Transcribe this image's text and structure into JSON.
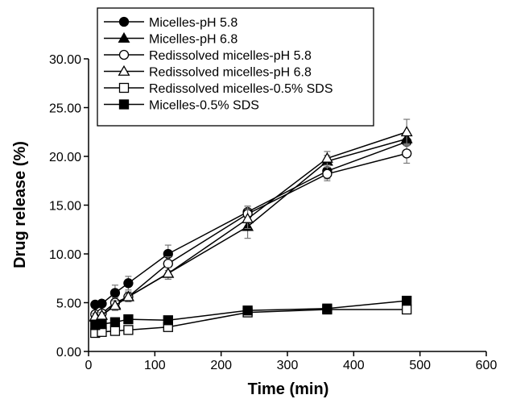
{
  "chart_data": {
    "type": "line",
    "title": "",
    "xlabel": "Time (min)",
    "ylabel": "Drug release (%)",
    "xlim": [
      0,
      600
    ],
    "ylim": [
      0,
      30
    ],
    "x_ticks": [
      "0",
      "100",
      "200",
      "300",
      "400",
      "500",
      "600"
    ],
    "y_ticks": [
      "0.00",
      "5.00",
      "10.00",
      "15.00",
      "20.00",
      "25.00",
      "30.00"
    ],
    "grid": false,
    "legend_position": "top-left",
    "x": [
      10,
      20,
      40,
      60,
      120,
      240,
      360,
      480
    ],
    "series": [
      {
        "name": "Micelles-pH 5.8",
        "marker": "circle",
        "fill": "filled",
        "values": [
          4.8,
          4.9,
          6.0,
          7.0,
          10.0,
          14.3,
          18.5,
          21.5
        ],
        "errors": [
          0.3,
          0.3,
          0.8,
          0.7,
          0.9,
          0.6,
          0.8,
          1.0
        ]
      },
      {
        "name": "Micelles-pH 6.8",
        "marker": "triangle",
        "fill": "filled",
        "values": [
          3.5,
          3.7,
          4.8,
          5.6,
          8.0,
          12.8,
          19.5,
          21.8
        ],
        "errors": [
          0.3,
          0.3,
          0.5,
          0.5,
          0.6,
          1.2,
          0.6,
          0.7
        ]
      },
      {
        "name": "Redissolved micelles-pH 5.8",
        "marker": "circle",
        "fill": "open",
        "values": [
          3.8,
          3.9,
          5.0,
          5.6,
          9.0,
          14.1,
          18.2,
          20.3
        ],
        "errors": [
          0.3,
          0.3,
          0.5,
          0.5,
          0.7,
          0.8,
          0.7,
          1.0
        ]
      },
      {
        "name": "Redissolved micelles-pH 6.8",
        "marker": "triangle",
        "fill": "open",
        "values": [
          3.6,
          3.7,
          4.7,
          5.6,
          8.0,
          13.6,
          19.8,
          22.5
        ],
        "errors": [
          0.3,
          0.3,
          0.5,
          0.5,
          0.6,
          1.0,
          0.7,
          1.3
        ]
      },
      {
        "name": "Redissolved micelles-0.5% SDS",
        "marker": "square",
        "fill": "open",
        "values": [
          1.9,
          2.0,
          2.1,
          2.2,
          2.5,
          4.0,
          4.3,
          4.3
        ],
        "errors": [
          0.2,
          0.2,
          0.2,
          0.2,
          0.2,
          0.2,
          0.2,
          0.2
        ]
      },
      {
        "name": "Micelles-0.5% SDS",
        "marker": "square",
        "fill": "filled",
        "values": [
          2.7,
          2.8,
          3.0,
          3.3,
          3.2,
          4.2,
          4.4,
          5.2
        ],
        "errors": [
          0.2,
          0.2,
          0.2,
          0.2,
          0.2,
          0.2,
          0.2,
          0.2
        ]
      }
    ]
  }
}
